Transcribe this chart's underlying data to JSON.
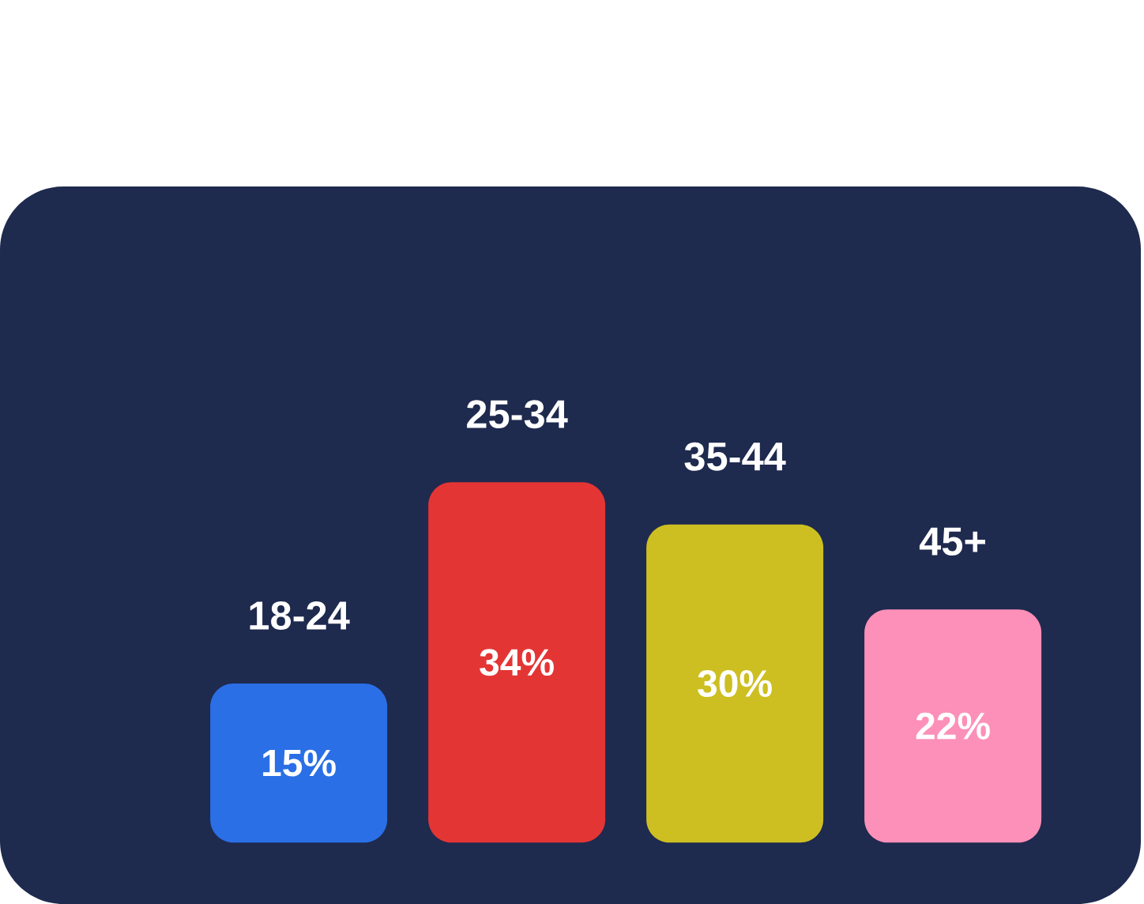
{
  "chart_data": {
    "type": "bar",
    "categories": [
      "18-24",
      "25-34",
      "35-44",
      "45+"
    ],
    "values": [
      15,
      34,
      30,
      22
    ],
    "colors": [
      "#2a6fe6",
      "#e43535",
      "#cdbf22",
      "#fd90b8"
    ],
    "value_labels": [
      "15%",
      "34%",
      "30%",
      "22%"
    ]
  }
}
